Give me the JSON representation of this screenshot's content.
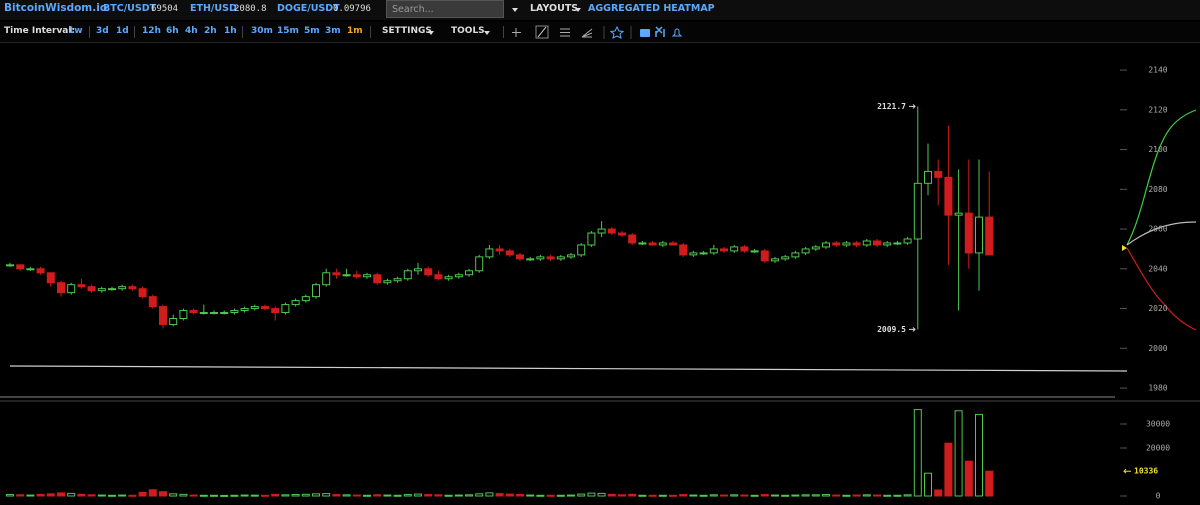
{
  "header": {
    "brand": "BitcoinWisdom.io",
    "tickers": [
      {
        "pair": "BTC/USDT",
        "price": 69504
      },
      {
        "pair": "ETH/USD",
        "price": 2080.8
      },
      {
        "pair": "DOGE/USDT",
        "price": 0.09796
      }
    ],
    "search_placeholder": "Search...",
    "layouts": "LAYOUTS",
    "heatmap": "AGGREGATED HEATMAP"
  },
  "toolbar": {
    "label": "Time Interval:",
    "intervals": [
      "1w",
      "3d",
      "1d",
      "12h",
      "6h",
      "4h",
      "2h",
      "1h",
      "30m",
      "15m",
      "5m",
      "3m",
      "1m"
    ],
    "active_index": 12,
    "settings": "SETTINGS",
    "tools": "TOOLS"
  },
  "chart_data": {
    "type": "candlestick",
    "up_color": "#4ec94e",
    "down_color": "#d01c1c",
    "open": [
      2042,
      2042,
      2040,
      2040,
      2038,
      2033,
      2028,
      2032,
      2031,
      2029,
      2030,
      2030,
      2031,
      2030,
      2026,
      2021,
      2012,
      2015,
      2019,
      2018,
      2018,
      2018,
      2018,
      2019,
      2020,
      2021,
      2020,
      2018,
      2022,
      2024,
      2026,
      2032,
      2038,
      2037,
      2037,
      2036,
      2037,
      2033,
      2034,
      2035,
      2039,
      2040,
      2037,
      2035,
      2036,
      2037,
      2039,
      2046,
      2050,
      2049,
      2047,
      2045,
      2045,
      2046,
      2045,
      2046,
      2047,
      2052,
      2058,
      2060,
      2058,
      2057,
      2053,
      2053,
      2052,
      2053,
      2052,
      2047,
      2048,
      2048,
      2050,
      2049,
      2051,
      2049,
      2049,
      2044,
      2045,
      2046,
      2048,
      2050,
      2051,
      2053,
      2052,
      2053,
      2052,
      2054,
      2052,
      2053,
      2053,
      2055,
      2083,
      2089,
      2086,
      2067,
      2068,
      2048,
      2066
    ],
    "high": [
      2043,
      2042,
      2041,
      2041,
      2038,
      2034,
      2033,
      2035,
      2032,
      2031,
      2031,
      2032,
      2032,
      2031,
      2027,
      2022,
      2017,
      2020,
      2020,
      2022,
      2019,
      2019,
      2020,
      2021,
      2022,
      2022,
      2021,
      2023,
      2025,
      2027,
      2033,
      2040,
      2040,
      2040,
      2039,
      2038,
      2038,
      2035,
      2036,
      2040,
      2043,
      2041,
      2039,
      2037,
      2038,
      2040,
      2047,
      2052,
      2052,
      2050,
      2048,
      2046,
      2047,
      2047,
      2047,
      2048,
      2053,
      2059,
      2064,
      2061,
      2059,
      2058,
      2054,
      2054,
      2054,
      2054,
      2053,
      2049,
      2049,
      2052,
      2051,
      2052,
      2052,
      2050,
      2050,
      2046,
      2047,
      2049,
      2051,
      2052,
      2054,
      2054,
      2054,
      2054,
      2055,
      2055,
      2054,
      2054,
      2056,
      2121.7,
      2103,
      2095,
      2112,
      2090,
      2095,
      2095,
      2089
    ],
    "low": [
      2041,
      2039,
      2039,
      2037,
      2031,
      2026,
      2027,
      2030,
      2028,
      2028,
      2029,
      2029,
      2029,
      2025,
      2020,
      2010,
      2011,
      2014,
      2017,
      2017,
      2017,
      2017,
      2017,
      2018,
      2019,
      2019,
      2014,
      2017,
      2021,
      2023,
      2025,
      2031,
      2035,
      2036,
      2035,
      2035,
      2032,
      2032,
      2033,
      2034,
      2037,
      2036,
      2034,
      2034,
      2035,
      2036,
      2038,
      2045,
      2047,
      2046,
      2044,
      2044,
      2044,
      2044,
      2044,
      2045,
      2046,
      2051,
      2056,
      2057,
      2056,
      2052,
      2052,
      2052,
      2051,
      2052,
      2046,
      2046,
      2047,
      2047,
      2048,
      2048,
      2048,
      2048,
      2043,
      2043,
      2044,
      2045,
      2047,
      2049,
      2050,
      2051,
      2051,
      2051,
      2051,
      2051,
      2051,
      2052,
      2052,
      2009.5,
      2077,
      2072,
      2042,
      2019,
      2040,
      2029,
      2047
    ],
    "close": [
      2042,
      2040,
      2040,
      2038,
      2033,
      2028,
      2032,
      2031,
      2029,
      2030,
      2030,
      2031,
      2030,
      2026,
      2021,
      2012,
      2015,
      2019,
      2018,
      2018,
      2018,
      2018,
      2019,
      2020,
      2021,
      2020,
      2018,
      2022,
      2024,
      2026,
      2032,
      2038,
      2037,
      2037,
      2036,
      2037,
      2033,
      2034,
      2035,
      2039,
      2040,
      2037,
      2035,
      2036,
      2037,
      2039,
      2046,
      2050,
      2049,
      2047,
      2045,
      2045,
      2046,
      2045,
      2046,
      2047,
      2052,
      2058,
      2060,
      2058,
      2057,
      2053,
      2053,
      2052,
      2053,
      2052,
      2047,
      2048,
      2048,
      2050,
      2049,
      2051,
      2049,
      2049,
      2044,
      2045,
      2046,
      2048,
      2050,
      2051,
      2053,
      2052,
      2053,
      2052,
      2054,
      2052,
      2053,
      2053,
      2055,
      2083,
      2089,
      2086,
      2067,
      2068,
      2048,
      2066,
      2047
    ],
    "ylim": [
      1975,
      2152.6
    ],
    "yticks": [
      2140,
      2120,
      2100,
      2080,
      2060,
      2040,
      2020,
      2000,
      1980
    ],
    "annotations": [
      2121.7,
      2009.5
    ],
    "annotation_color": "#dddddd",
    "volume": {
      "values": [
        600,
        500,
        400,
        700,
        900,
        1300,
        1100,
        700,
        500,
        400,
        300,
        400,
        300,
        1500,
        2600,
        1800,
        900,
        700,
        400,
        300,
        300,
        250,
        300,
        400,
        350,
        300,
        700,
        500,
        600,
        700,
        900,
        1000,
        600,
        500,
        400,
        300,
        500,
        400,
        300,
        600,
        800,
        600,
        500,
        300,
        400,
        500,
        900,
        1300,
        1000,
        800,
        600,
        400,
        300,
        300,
        300,
        400,
        800,
        1200,
        1100,
        700,
        500,
        700,
        300,
        300,
        300,
        300,
        600,
        400,
        300,
        500,
        400,
        500,
        400,
        300,
        600,
        400,
        300,
        400,
        500,
        500,
        600,
        400,
        300,
        400,
        500,
        400,
        300,
        300,
        500,
        36000,
        9500,
        2500,
        22000,
        35500,
        14500,
        34000,
        10336
      ],
      "ylim": [
        -2917,
        39167
      ],
      "yticks": [
        30000,
        20000,
        0
      ],
      "last_color": "#f0e030"
    }
  }
}
